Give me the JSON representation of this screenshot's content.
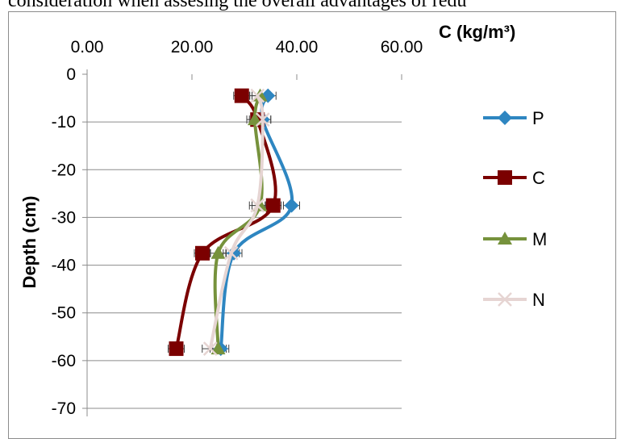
{
  "page_text": "consideration when assesing the overall advantages of redu",
  "chart_data": {
    "type": "line",
    "xlabel": "C (kg/m³)",
    "ylabel": "Depth (cm)",
    "xlim": [
      0,
      60
    ],
    "ylim": [
      -70,
      0
    ],
    "x_ticks": [
      "0.00",
      "20.00",
      "40.00",
      "60.00"
    ],
    "x_tick_values": [
      0,
      20,
      40,
      60
    ],
    "y_ticks": [
      "0",
      "-10",
      "-20",
      "-30",
      "-40",
      "-50",
      "-60",
      "-70"
    ],
    "y_tick_values": [
      0,
      -10,
      -20,
      -30,
      -40,
      -50,
      -60,
      -70
    ],
    "x_axis_position": "top",
    "grid": "horizontal",
    "legend_position": "right",
    "smooth_lines": true,
    "series": [
      {
        "name": "P",
        "color": "#2E86C1",
        "marker": "diamond",
        "points": [
          [
            34.5,
            -4.5
          ],
          [
            33.5,
            -9.5
          ],
          [
            39,
            -27.5
          ],
          [
            28,
            -37.5
          ],
          [
            25.5,
            -57.5
          ]
        ]
      },
      {
        "name": "C",
        "color": "#7B0000",
        "marker": "square",
        "points": [
          [
            29.5,
            -4.5
          ],
          [
            32.5,
            -9.5
          ],
          [
            35.5,
            -27.5
          ],
          [
            22,
            -37.5
          ],
          [
            17,
            -57.5
          ]
        ]
      },
      {
        "name": "M",
        "color": "#76923C",
        "marker": "triangle",
        "points": [
          [
            33,
            -4.5
          ],
          [
            32,
            -9.5
          ],
          [
            33,
            -27.5
          ],
          [
            25,
            -37.5
          ],
          [
            25,
            -57.5
          ]
        ]
      },
      {
        "name": "N",
        "color": "#E6D5D3",
        "marker": "x",
        "points": [
          [
            32.5,
            -4.5
          ],
          [
            33.5,
            -9.5
          ],
          [
            32.5,
            -27.5
          ],
          [
            27.5,
            -37.5
          ],
          [
            23.5,
            -57.5
          ]
        ]
      }
    ]
  }
}
